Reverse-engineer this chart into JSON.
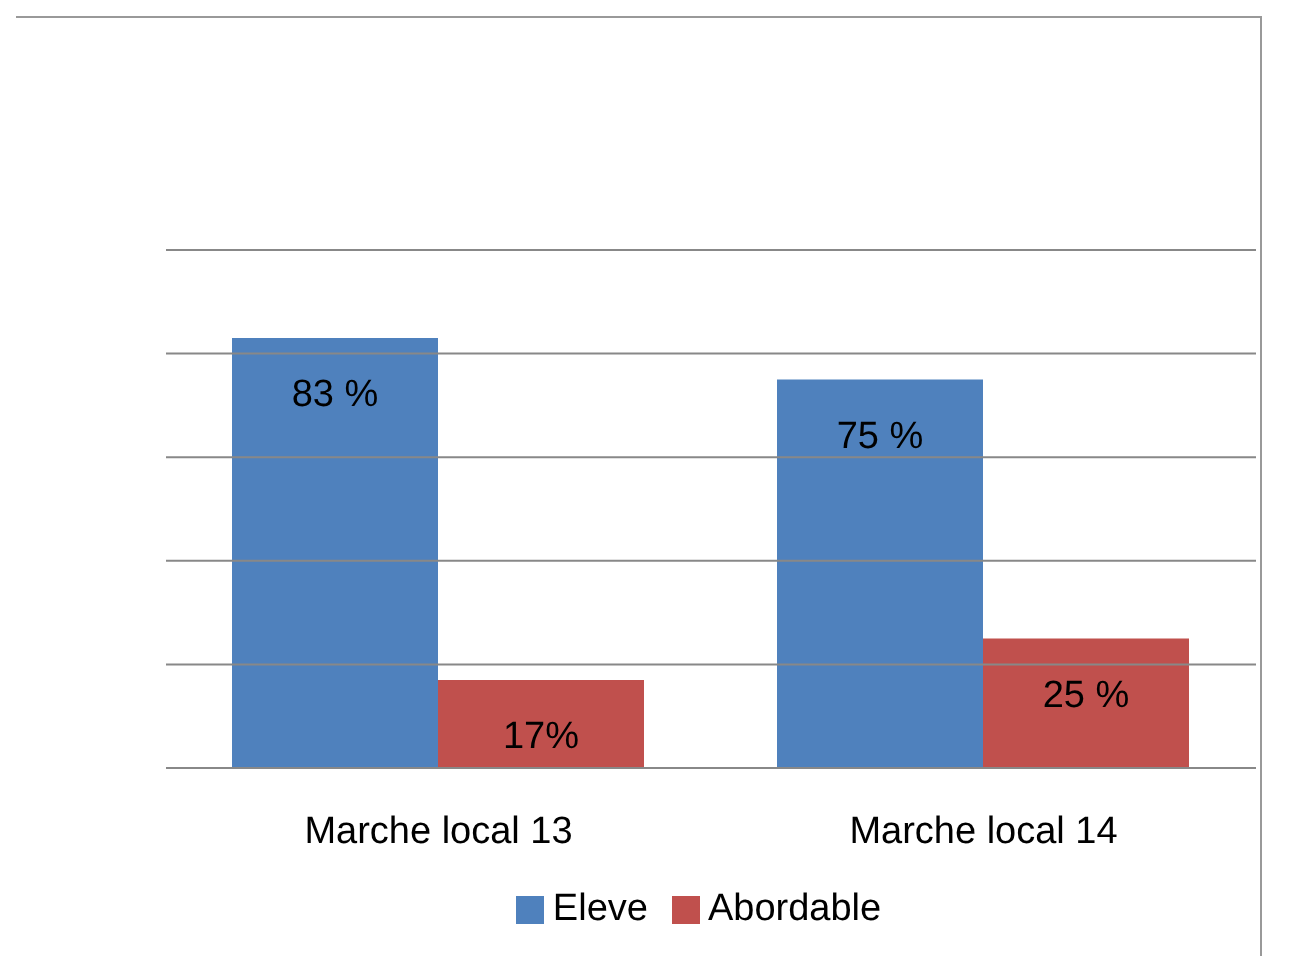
{
  "chart_data": {
    "type": "bar",
    "categories": [
      "Marche local 13",
      "Marche local 14"
    ],
    "series": [
      {
        "name": "Eleve",
        "color": "#4f81bd",
        "values": [
          83,
          75
        ],
        "value_labels": [
          "83 %",
          "75 %"
        ]
      },
      {
        "name": "Abordable",
        "color": "#c0504d",
        "values": [
          17,
          25
        ],
        "value_labels": [
          "17%",
          "25 %"
        ]
      }
    ],
    "ylim": [
      0,
      100
    ],
    "yticks": [
      0,
      20,
      40,
      60,
      80,
      100
    ],
    "tick_labels": "x",
    "grid": "y",
    "legend": "bottom"
  }
}
